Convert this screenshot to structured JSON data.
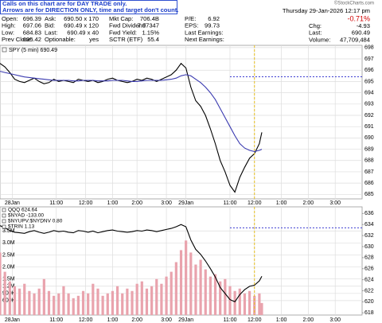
{
  "notice": [
    "Calls on this chart are for DAY TRADE only.",
    "Arrows are for DIRECTION ONLY, time and target don't count."
  ],
  "quote": {
    "rows": [
      [
        "Open:",
        "696.39",
        "Ask:",
        "690.50 x 170",
        "Mkt Cap:",
        "706.4B",
        "P/E:",
        "6.92"
      ],
      [
        "High:",
        "697.06",
        "Bid:",
        "690.49 x 120",
        "Fwd Dividend",
        "7.97347",
        "EPS:",
        "99.73"
      ],
      [
        "Low:",
        "684.83",
        "Last:",
        "690.49 x 40",
        "Fwd Yield:",
        "1.15%",
        "Last Earnings:"
      ],
      [
        "Prev Close:",
        "695.42",
        "Optionable:",
        "yes",
        "SCTR (ETF)",
        "55.4",
        "Next Earnings:"
      ]
    ],
    "date": "Thursday 29-Jan-2026 12:17 pm",
    "change_pct": "-0.71%",
    "stats": [
      [
        "Chg:",
        "-4.93"
      ],
      [
        "Last:",
        "690.49"
      ],
      [
        "Volume:",
        "47,709,484"
      ]
    ]
  },
  "copyright": "©StockCharts.com",
  "chart_data": [
    {
      "type": "line",
      "title": "SPY (5 min) 690.49",
      "y_axis_side": "right",
      "grid": true,
      "x": [
        0,
        2,
        4,
        6,
        8,
        10,
        12,
        14,
        16,
        18,
        20,
        22,
        24,
        26,
        28,
        30,
        32,
        34,
        36,
        38,
        40,
        42,
        44,
        46,
        48,
        50,
        52,
        54,
        56,
        58,
        60,
        62,
        64,
        66,
        68,
        70,
        72,
        74,
        76,
        78,
        80,
        82,
        84,
        86,
        88,
        90,
        92,
        94,
        96,
        98,
        100,
        102,
        104,
        106,
        107
      ],
      "xlim": [
        0,
        148
      ],
      "xticks": [
        {
          "value": 5,
          "label": "28Jan"
        },
        {
          "value": 23,
          "label": "11:00"
        },
        {
          "value": 35,
          "label": "12:00"
        },
        {
          "value": 46,
          "label": "1:00"
        },
        {
          "value": 56,
          "label": "2:00"
        },
        {
          "value": 68,
          "label": "3:00"
        },
        {
          "value": 76,
          "label": "29Jan"
        },
        {
          "value": 94,
          "label": "11:00"
        },
        {
          "value": 104,
          "label": "12:00"
        },
        {
          "value": 115,
          "label": "1:00"
        },
        {
          "value": 126,
          "label": "2:00"
        },
        {
          "value": 137,
          "label": "3:00"
        }
      ],
      "ylim": [
        684.6,
        698.2
      ],
      "yticks": [
        685,
        686,
        687,
        688,
        689,
        690,
        691,
        692,
        693,
        694,
        695,
        696,
        697,
        698
      ],
      "ref_line": {
        "value": 695.42,
        "color": "#3a3ad0"
      },
      "series": [
        {
          "color": "#000000",
          "values": [
            696.6,
            696.3,
            695.8,
            695.2,
            695.0,
            694.9,
            695.1,
            695.3,
            695.0,
            694.8,
            694.9,
            695.2,
            695.0,
            695.1,
            695.0,
            694.9,
            695.2,
            695.1,
            695.0,
            695.1,
            694.9,
            695.0,
            695.2,
            695.3,
            695.1,
            695.0,
            694.9,
            695.0,
            695.2,
            695.1,
            695.3,
            695.2,
            695.0,
            695.2,
            695.4,
            695.6,
            696.0,
            696.6,
            696.2,
            694.5,
            693.3,
            692.8,
            692.0,
            690.8,
            689.5,
            688.0,
            687.0,
            685.8,
            685.2,
            686.5,
            687.4,
            688.2,
            688.6,
            689.5,
            690.49
          ]
        },
        {
          "color": "#3a3ab0",
          "values": [
            695.9,
            695.8,
            695.7,
            695.6,
            695.5,
            695.4,
            695.35,
            695.3,
            695.25,
            695.2,
            695.15,
            695.1,
            695.1,
            695.1,
            695.1,
            695.05,
            695.05,
            695.1,
            695.1,
            695.1,
            695.05,
            695.05,
            695.05,
            695.1,
            695.1,
            695.1,
            695.05,
            695.0,
            695.0,
            695.05,
            695.1,
            695.1,
            695.1,
            695.1,
            695.15,
            695.2,
            695.3,
            695.5,
            695.6,
            695.5,
            695.2,
            694.9,
            694.5,
            694.0,
            693.4,
            692.6,
            691.8,
            691.0,
            690.2,
            689.5,
            689.1,
            688.9,
            688.8,
            688.9,
            689.0
          ]
        }
      ]
    },
    {
      "type": "bar",
      "labels": [
        "QQQ 624.64",
        "$NYAD -133.00",
        "$NYUPV:$NYDNV 0.80",
        "$TRIN 1.13"
      ],
      "grid": true,
      "x": [
        0,
        2,
        4,
        6,
        8,
        10,
        12,
        14,
        16,
        18,
        20,
        22,
        24,
        26,
        28,
        30,
        32,
        34,
        36,
        38,
        40,
        42,
        44,
        46,
        48,
        50,
        52,
        54,
        56,
        58,
        60,
        62,
        64,
        66,
        68,
        70,
        72,
        74,
        76,
        78,
        80,
        82,
        84,
        86,
        88,
        90,
        92,
        94,
        96,
        98,
        100,
        102,
        104,
        106,
        107
      ],
      "xlim": [
        0,
        148
      ],
      "xticks": [
        {
          "value": 5,
          "label": "28Jan"
        },
        {
          "value": 23,
          "label": "11:00"
        },
        {
          "value": 35,
          "label": "12:00"
        },
        {
          "value": 46,
          "label": "1:00"
        },
        {
          "value": 56,
          "label": "2:00"
        },
        {
          "value": 68,
          "label": "3:00"
        },
        {
          "value": 76,
          "label": "29Jan"
        },
        {
          "value": 94,
          "label": "11:00"
        },
        {
          "value": 104,
          "label": "12:00"
        },
        {
          "value": 115,
          "label": "1:00"
        },
        {
          "value": 126,
          "label": "2:00"
        },
        {
          "value": 137,
          "label": "3:00"
        }
      ],
      "ylim": [
        0,
        4500000
      ],
      "yticks": [
        {
          "value": 600000,
          "label": "600K"
        },
        {
          "value": 900000,
          "label": "900K"
        },
        {
          "value": 1200000,
          "label": "1.2M"
        },
        {
          "value": 1500000,
          "label": "1.5M"
        },
        {
          "value": 2000000,
          "label": "2.0M"
        },
        {
          "value": 2500000,
          "label": "2.5M"
        },
        {
          "value": 3000000,
          "label": "3.0M"
        },
        {
          "value": 3500000,
          "label": "3.5M"
        }
      ],
      "y2lim": [
        617.6,
        637.2
      ],
      "y2ticks": [
        618,
        620,
        622,
        624,
        626,
        628,
        630,
        632,
        634,
        636
      ],
      "ref_line": {
        "value": 633.4,
        "color": "#3a3ad0",
        "axis": "y2"
      },
      "series": [
        {
          "type": "bar",
          "color": "#e9a3ad",
          "values": [
            2600000,
            1800000,
            1400000,
            1200000,
            1100000,
            1300000,
            1000000,
            900000,
            1100000,
            1500000,
            1000000,
            800000,
            900000,
            1200000,
            900000,
            700000,
            800000,
            1000000,
            900000,
            1300000,
            1100000,
            800000,
            900000,
            1000000,
            1200000,
            900000,
            1100000,
            1000000,
            1300000,
            1400000,
            1100000,
            1200000,
            1500000,
            1300000,
            1600000,
            1800000,
            2200000,
            2700000,
            3100000,
            2600000,
            2100000,
            2300000,
            1900000,
            1600000,
            1700000,
            1400000,
            1500000,
            1200000,
            1000000,
            1100000,
            900000,
            1000000,
            800000,
            900000,
            500000
          ]
        },
        {
          "type": "line",
          "axis": "y2",
          "color": "#000000",
          "values": [
            633.8,
            633.4,
            632.9,
            632.6,
            632.5,
            632.4,
            632.7,
            632.9,
            632.6,
            632.4,
            632.6,
            632.9,
            632.7,
            632.8,
            632.6,
            632.5,
            632.9,
            632.8,
            632.6,
            632.8,
            632.5,
            632.7,
            632.9,
            633.0,
            632.8,
            632.7,
            632.6,
            632.7,
            632.9,
            632.8,
            633.0,
            632.9,
            632.7,
            632.9,
            633.1,
            633.3,
            633.6,
            634.0,
            633.6,
            631.2,
            629.5,
            628.6,
            627.4,
            626.0,
            624.5,
            622.6,
            621.5,
            620.4,
            620.0,
            621.3,
            622.2,
            622.8,
            623.0,
            623.8,
            624.64
          ]
        }
      ]
    }
  ]
}
